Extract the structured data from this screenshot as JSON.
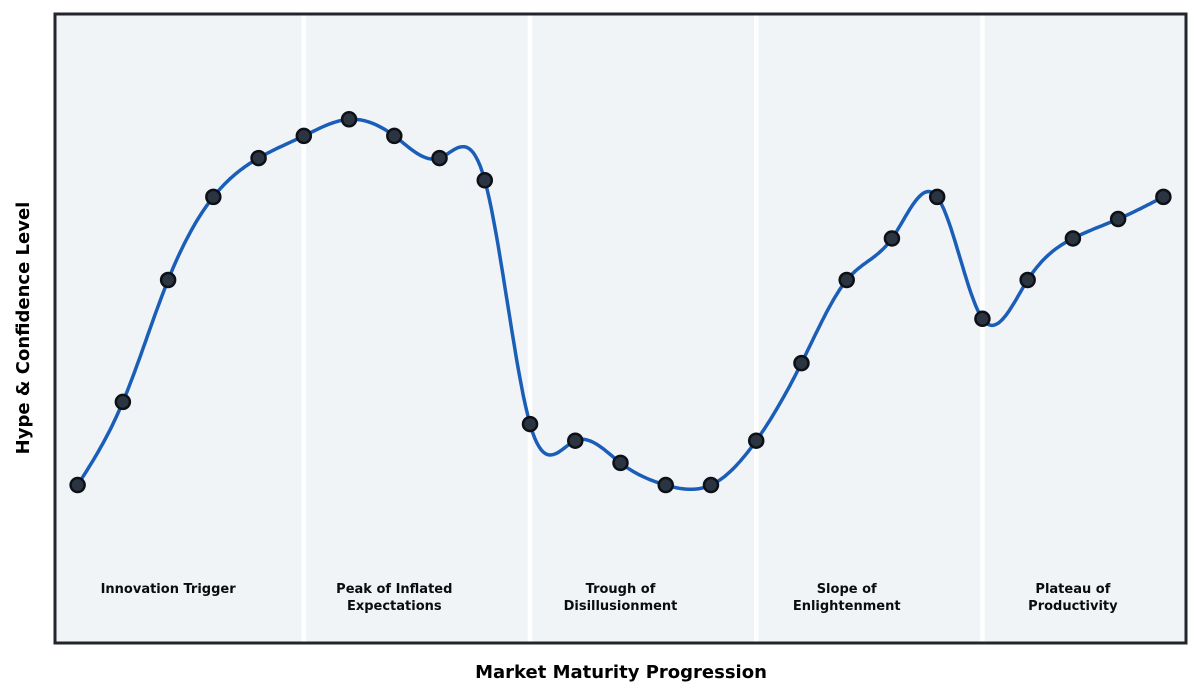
{
  "figure": {
    "background": "#ffffff"
  },
  "chart_data": {
    "type": "line",
    "title": "",
    "xlabel": "Market Maturity Progression",
    "ylabel": "Hype & Confidence Level",
    "interpolation": "cubic-spline",
    "grid": false,
    "x": [
      0,
      1,
      2,
      3,
      4,
      5,
      6,
      7,
      8,
      9,
      10,
      11,
      12,
      13,
      14,
      15,
      16,
      17,
      18,
      19,
      20,
      21,
      22,
      23,
      24
    ],
    "y": [
      11,
      26,
      48,
      63,
      70,
      74,
      77,
      74,
      70,
      66,
      22,
      19,
      15,
      11,
      11,
      19,
      33,
      48,
      55.5,
      63,
      41,
      48,
      55.5,
      59,
      63
    ],
    "xlim": [
      -0.5,
      24.5
    ],
    "ylim": [
      -17.5,
      96
    ],
    "phase_divider_x": [
      5,
      10,
      15,
      20
    ],
    "phases": [
      {
        "label": "Innovation Trigger",
        "center_x": 2,
        "range": [
          0,
          5
        ]
      },
      {
        "label": "Peak of Inflated\nExpectations",
        "center_x": 7,
        "range": [
          5,
          10
        ]
      },
      {
        "label": "Trough of\nDisillusionment",
        "center_x": 12,
        "range": [
          10,
          15
        ]
      },
      {
        "label": "Slope of\nEnlightenment",
        "center_x": 17,
        "range": [
          15,
          20
        ]
      },
      {
        "label": "Plateau of\nProductivity",
        "center_x": 22,
        "range": [
          20,
          24
        ]
      }
    ]
  },
  "colors": {
    "plot_bg": "#f0f4f7",
    "line": "#1a5eb8",
    "marker_fill": "#2b3542",
    "marker_edge": "#0d1117",
    "frame": "#22262c",
    "divider": "#ffffff",
    "text": "#000000"
  },
  "style": {
    "line_width": 3.5,
    "marker_radius": 7,
    "marker_edge_width": 2.5,
    "divider_width": 4.5,
    "frame_width": 3
  }
}
